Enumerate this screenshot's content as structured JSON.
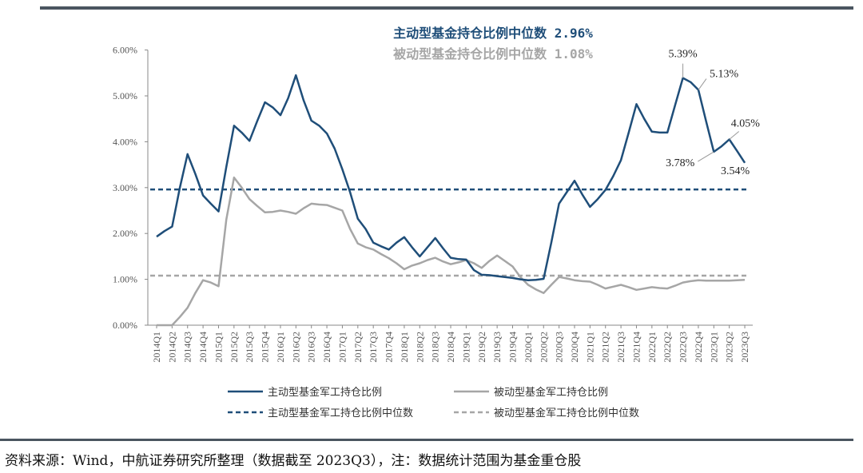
{
  "colors": {
    "active": "#1f4e79",
    "passive": "#a6a6a6",
    "axis": "#888888",
    "rule": "#4a5560"
  },
  "chart_data": {
    "type": "line",
    "title": "",
    "xlabel": "",
    "ylabel": "",
    "ylim": [
      0,
      6
    ],
    "yticks": [
      "0.00%",
      "1.00%",
      "2.00%",
      "3.00%",
      "4.00%",
      "5.00%",
      "6.00%"
    ],
    "categories": [
      "2014Q1",
      "2014Q2",
      "2014Q3",
      "2014Q4",
      "2015Q1",
      "2015Q2",
      "2015Q3",
      "2015Q4",
      "2016Q1",
      "2016Q2",
      "2016Q3",
      "2016Q4",
      "2017Q1",
      "2017Q2",
      "2017Q3",
      "2017Q4",
      "2018Q1",
      "2018Q2",
      "2018Q3",
      "2018Q4",
      "2019Q1",
      "2019Q2",
      "2019Q3",
      "2019Q4",
      "2020Q1",
      "2020Q2",
      "2020Q3",
      "2020Q4",
      "2021Q1",
      "2021Q2",
      "2021Q3",
      "2021Q4",
      "2022Q1",
      "2022Q2",
      "2022Q3",
      "2022Q4",
      "2023Q1",
      "2023Q2",
      "2023Q3"
    ],
    "series": [
      {
        "name": "主动型基金军工持仓比例",
        "style": "solid",
        "points": [
          {
            "x": 0,
            "y": 1.93
          },
          {
            "x": 0.5,
            "y": 2.05
          },
          {
            "x": 1,
            "y": 2.15
          },
          {
            "x": 1.5,
            "y": 3.0
          },
          {
            "x": 2,
            "y": 3.73
          },
          {
            "x": 2.5,
            "y": 3.3
          },
          {
            "x": 3,
            "y": 2.83
          },
          {
            "x": 3.5,
            "y": 2.65
          },
          {
            "x": 4,
            "y": 2.48
          },
          {
            "x": 4.5,
            "y": 3.45
          },
          {
            "x": 5,
            "y": 4.35
          },
          {
            "x": 5.5,
            "y": 4.2
          },
          {
            "x": 6,
            "y": 4.02
          },
          {
            "x": 6.5,
            "y": 4.45
          },
          {
            "x": 7,
            "y": 4.86
          },
          {
            "x": 7.5,
            "y": 4.75
          },
          {
            "x": 8,
            "y": 4.58
          },
          {
            "x": 8.5,
            "y": 4.95
          },
          {
            "x": 9,
            "y": 5.45
          },
          {
            "x": 9.5,
            "y": 4.9
          },
          {
            "x": 10,
            "y": 4.46
          },
          {
            "x": 10.5,
            "y": 4.35
          },
          {
            "x": 11,
            "y": 4.18
          },
          {
            "x": 11.5,
            "y": 3.85
          },
          {
            "x": 12,
            "y": 3.4
          },
          {
            "x": 12.5,
            "y": 2.9
          },
          {
            "x": 13,
            "y": 2.32
          },
          {
            "x": 13.5,
            "y": 2.1
          },
          {
            "x": 14,
            "y": 1.8
          },
          {
            "x": 14.5,
            "y": 1.72
          },
          {
            "x": 15,
            "y": 1.65
          },
          {
            "x": 15.5,
            "y": 1.8
          },
          {
            "x": 16,
            "y": 1.92
          },
          {
            "x": 16.5,
            "y": 1.7
          },
          {
            "x": 17,
            "y": 1.5
          },
          {
            "x": 17.5,
            "y": 1.7
          },
          {
            "x": 18,
            "y": 1.9
          },
          {
            "x": 18.5,
            "y": 1.68
          },
          {
            "x": 19,
            "y": 1.47
          },
          {
            "x": 19.5,
            "y": 1.44
          },
          {
            "x": 20,
            "y": 1.43
          },
          {
            "x": 20.5,
            "y": 1.2
          },
          {
            "x": 21,
            "y": 1.1
          },
          {
            "x": 21.5,
            "y": 1.09
          },
          {
            "x": 22,
            "y": 1.07
          },
          {
            "x": 22.5,
            "y": 1.05
          },
          {
            "x": 23,
            "y": 1.03
          },
          {
            "x": 23.5,
            "y": 1.0
          },
          {
            "x": 24,
            "y": 0.98
          },
          {
            "x": 24.5,
            "y": 0.99
          },
          {
            "x": 25,
            "y": 1.01
          },
          {
            "x": 25.5,
            "y": 1.8
          },
          {
            "x": 26,
            "y": 2.65
          },
          {
            "x": 26.5,
            "y": 2.9
          },
          {
            "x": 27,
            "y": 3.15
          },
          {
            "x": 27.5,
            "y": 2.85
          },
          {
            "x": 28,
            "y": 2.58
          },
          {
            "x": 28.5,
            "y": 2.75
          },
          {
            "x": 29,
            "y": 2.95
          },
          {
            "x": 29.5,
            "y": 3.25
          },
          {
            "x": 30,
            "y": 3.6
          },
          {
            "x": 30.5,
            "y": 4.2
          },
          {
            "x": 31,
            "y": 4.82
          },
          {
            "x": 31.5,
            "y": 4.5
          },
          {
            "x": 32,
            "y": 4.22
          },
          {
            "x": 32.5,
            "y": 4.2
          },
          {
            "x": 33,
            "y": 4.2
          },
          {
            "x": 33.5,
            "y": 4.8
          },
          {
            "x": 34,
            "y": 5.39
          },
          {
            "x": 34.5,
            "y": 5.3
          },
          {
            "x": 35,
            "y": 5.13
          },
          {
            "x": 35.5,
            "y": 4.45
          },
          {
            "x": 36,
            "y": 3.78
          },
          {
            "x": 36.5,
            "y": 3.9
          },
          {
            "x": 37,
            "y": 4.05
          },
          {
            "x": 37.5,
            "y": 3.8
          },
          {
            "x": 38,
            "y": 3.54
          }
        ]
      },
      {
        "name": "被动型基金军工持仓比例",
        "style": "solid",
        "points": [
          {
            "x": 0,
            "y": 0.0
          },
          {
            "x": 0.5,
            "y": 0.0
          },
          {
            "x": 1,
            "y": 0.0
          },
          {
            "x": 1.5,
            "y": 0.18
          },
          {
            "x": 2,
            "y": 0.38
          },
          {
            "x": 2.5,
            "y": 0.7
          },
          {
            "x": 3,
            "y": 0.98
          },
          {
            "x": 3.5,
            "y": 0.93
          },
          {
            "x": 4,
            "y": 0.85
          },
          {
            "x": 4.5,
            "y": 2.3
          },
          {
            "x": 5,
            "y": 3.22
          },
          {
            "x": 5.5,
            "y": 3.0
          },
          {
            "x": 6,
            "y": 2.75
          },
          {
            "x": 6.5,
            "y": 2.6
          },
          {
            "x": 7,
            "y": 2.46
          },
          {
            "x": 7.5,
            "y": 2.47
          },
          {
            "x": 8,
            "y": 2.5
          },
          {
            "x": 8.5,
            "y": 2.47
          },
          {
            "x": 9,
            "y": 2.43
          },
          {
            "x": 9.5,
            "y": 2.55
          },
          {
            "x": 10,
            "y": 2.65
          },
          {
            "x": 10.5,
            "y": 2.63
          },
          {
            "x": 11,
            "y": 2.62
          },
          {
            "x": 11.5,
            "y": 2.56
          },
          {
            "x": 12,
            "y": 2.5
          },
          {
            "x": 12.5,
            "y": 2.1
          },
          {
            "x": 13,
            "y": 1.78
          },
          {
            "x": 13.5,
            "y": 1.7
          },
          {
            "x": 14,
            "y": 1.65
          },
          {
            "x": 14.5,
            "y": 1.55
          },
          {
            "x": 15,
            "y": 1.46
          },
          {
            "x": 15.5,
            "y": 1.35
          },
          {
            "x": 16,
            "y": 1.22
          },
          {
            "x": 16.5,
            "y": 1.3
          },
          {
            "x": 17,
            "y": 1.35
          },
          {
            "x": 17.5,
            "y": 1.42
          },
          {
            "x": 18,
            "y": 1.47
          },
          {
            "x": 18.5,
            "y": 1.39
          },
          {
            "x": 19,
            "y": 1.33
          },
          {
            "x": 19.5,
            "y": 1.37
          },
          {
            "x": 20,
            "y": 1.42
          },
          {
            "x": 20.5,
            "y": 1.35
          },
          {
            "x": 21,
            "y": 1.25
          },
          {
            "x": 21.5,
            "y": 1.4
          },
          {
            "x": 22,
            "y": 1.52
          },
          {
            "x": 22.5,
            "y": 1.4
          },
          {
            "x": 23,
            "y": 1.28
          },
          {
            "x": 23.5,
            "y": 1.05
          },
          {
            "x": 24,
            "y": 0.88
          },
          {
            "x": 24.5,
            "y": 0.78
          },
          {
            "x": 25,
            "y": 0.7
          },
          {
            "x": 25.5,
            "y": 0.88
          },
          {
            "x": 26,
            "y": 1.05
          },
          {
            "x": 26.5,
            "y": 1.02
          },
          {
            "x": 27,
            "y": 0.98
          },
          {
            "x": 27.5,
            "y": 0.96
          },
          {
            "x": 28,
            "y": 0.95
          },
          {
            "x": 28.5,
            "y": 0.88
          },
          {
            "x": 29,
            "y": 0.8
          },
          {
            "x": 29.5,
            "y": 0.84
          },
          {
            "x": 30,
            "y": 0.88
          },
          {
            "x": 30.5,
            "y": 0.83
          },
          {
            "x": 31,
            "y": 0.77
          },
          {
            "x": 31.5,
            "y": 0.8
          },
          {
            "x": 32,
            "y": 0.83
          },
          {
            "x": 32.5,
            "y": 0.81
          },
          {
            "x": 33,
            "y": 0.8
          },
          {
            "x": 33.5,
            "y": 0.86
          },
          {
            "x": 34,
            "y": 0.93
          },
          {
            "x": 34.5,
            "y": 0.96
          },
          {
            "x": 35,
            "y": 0.98
          },
          {
            "x": 35.5,
            "y": 0.97
          },
          {
            "x": 36,
            "y": 0.97
          },
          {
            "x": 36.5,
            "y": 0.97
          },
          {
            "x": 37,
            "y": 0.97
          },
          {
            "x": 37.5,
            "y": 0.98
          },
          {
            "x": 38,
            "y": 0.99
          }
        ]
      },
      {
        "name": "主动型基金军工持仓比例中位数",
        "style": "dashed",
        "value": 2.96
      },
      {
        "name": "被动型基金军工持仓比例中位数",
        "style": "dashed",
        "value": 1.08
      }
    ],
    "annotations": [
      {
        "x": 34,
        "y": 5.39,
        "text": "5.39%"
      },
      {
        "x": 35,
        "y": 5.13,
        "text": "5.13%"
      },
      {
        "x": 37,
        "y": 4.05,
        "text": "4.05%"
      },
      {
        "x": 36,
        "y": 3.78,
        "text": "3.78%"
      },
      {
        "x": 38,
        "y": 3.54,
        "text": "3.54%"
      }
    ],
    "median_labels": {
      "active": "主动型基金持仓比例中位数 2.96%",
      "passive": "被动型基金持仓比例中位数 1.08%"
    },
    "legend": [
      "主动型基金军工持仓比例",
      "被动型基金军工持仓比例",
      "主动型基金军工持仓比例中位数",
      "被动型基金军工持仓比例中位数"
    ],
    "legend_position": "bottom"
  },
  "footer": {
    "source": "资料来源：Wind，中航证券研究所整理（数据截至 2023Q3），注：数据统计范围为基金重仓股"
  }
}
